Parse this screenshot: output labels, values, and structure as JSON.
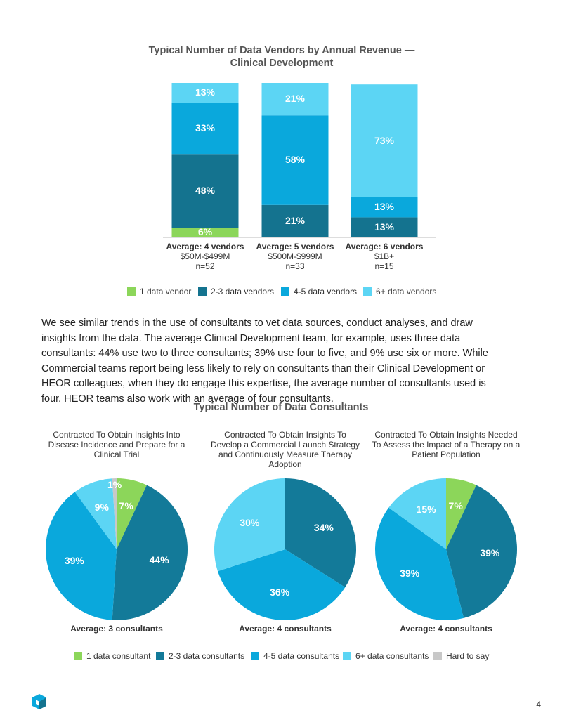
{
  "chart_data": [
    {
      "type": "bar",
      "stacked": true,
      "title": "Typical Number of Data Vendors by Annual Revenue — Clinical Development",
      "categories": [
        "$50M-$499M",
        "$500M-$999M",
        "$1B+"
      ],
      "averages": [
        "Average: 4 vendors",
        "Average: 5 vendors",
        "Average: 6 vendors"
      ],
      "sample_sizes": [
        "n=52",
        "n=33",
        "n=15"
      ],
      "ylim": [
        0,
        100
      ],
      "series": [
        {
          "name": "1 data vendor",
          "color": "#8cd65a",
          "values": [
            6,
            null,
            null
          ],
          "value_labels": [
            "6%",
            null,
            null
          ]
        },
        {
          "name": "2-3 data vendors",
          "color": "#14738f",
          "values": [
            48,
            21,
            13
          ],
          "value_labels": [
            "48%",
            "21%",
            "13%"
          ]
        },
        {
          "name": "4-5 data vendors",
          "color": "#0aa8dc",
          "values": [
            33,
            58,
            13
          ],
          "value_labels": [
            "33%",
            "58%",
            "13%"
          ]
        },
        {
          "name": "6+ data vendors",
          "color": "#5cd5f4",
          "values": [
            13,
            21,
            73
          ],
          "value_labels": [
            "13%",
            "21%",
            "73%"
          ]
        }
      ]
    },
    {
      "type": "pie",
      "title": "Typical Number of Data Consultants",
      "categories": [
        "1 data consultant",
        "2-3 data consultants",
        "4-5 data consultants",
        "6+ data consultants",
        "Hard to say"
      ],
      "colors": [
        "#8cd65a",
        "#137a99",
        "#0aa8dc",
        "#5cd5f4",
        "#c8c8c8"
      ],
      "pies": [
        {
          "title": "Contracted To Obtain Insights Into Disease Incidence and Prepare for a Clinical Trial",
          "values": [
            7,
            44,
            39,
            9,
            1
          ],
          "value_labels": [
            "7%",
            "44%",
            "39%",
            "9%",
            "1%"
          ],
          "average": "Average: 3 consultants"
        },
        {
          "title": "Contracted To Obtain Insights To Develop a Commercial Launch Strategy and Continuously Measure Therapy Adoption",
          "values": [
            null,
            34,
            36,
            30,
            null
          ],
          "value_labels": [
            null,
            "34%",
            "36%",
            "30%",
            null
          ],
          "average": "Average: 4 consultants"
        },
        {
          "title": "Contracted To Obtain Insights Needed To Assess the Impact of a Therapy on a Patient Population",
          "values": [
            7,
            39,
            39,
            15,
            null
          ],
          "value_labels": [
            "7%",
            "39%",
            "39%",
            "15%",
            null
          ],
          "average": "Average: 4 consultants"
        }
      ]
    }
  ],
  "paragraph": "We see similar trends in the use of consultants to vet data sources, conduct analyses, and draw insights from the data. The average Clinical Development team, for example, uses three data consultants: 44% use two to three consultants; 39% use four to five, and 9% use six or more. While Commercial teams report being less likely to rely on consultants than their Clinical Development or HEOR colleagues, when they do engage this expertise, the average number of consultants used is four. HEOR teams also work with an average of four consultants.",
  "page_number": "4"
}
